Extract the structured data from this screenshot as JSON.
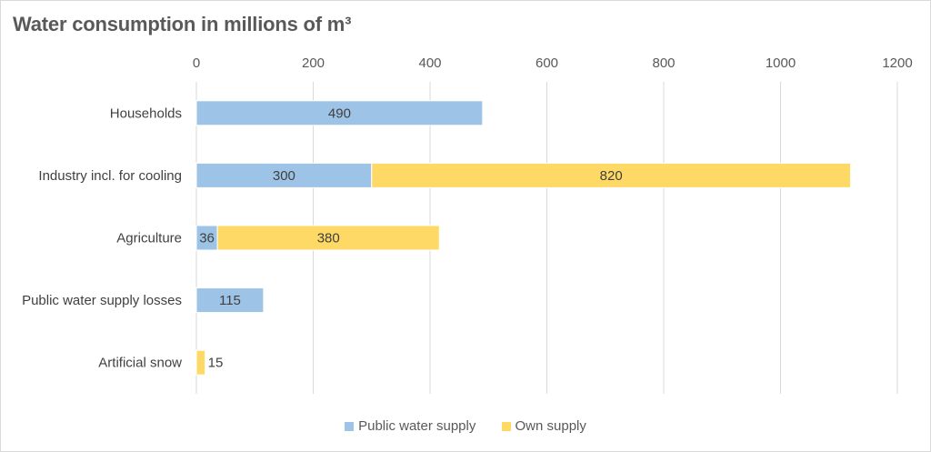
{
  "chart_data": {
    "type": "bar",
    "orientation": "horizontal",
    "stacked": true,
    "title": "Water consumption in millions of m³",
    "xlabel": "",
    "ylabel": "",
    "xlim": [
      0,
      1200
    ],
    "xticks": [
      0,
      200,
      400,
      600,
      800,
      1000,
      1200
    ],
    "xtick_labels": [
      "0",
      "200",
      "400",
      "600",
      "800",
      "1000",
      "1200"
    ],
    "x_axis_position": "top",
    "grid": true,
    "legend_position": "bottom",
    "categories": [
      "Households",
      "Industry incl. for cooling",
      "Agriculture",
      "Public water supply losses",
      "Artificial snow"
    ],
    "series": [
      {
        "name": "Public water supply",
        "color": "#9DC3E6",
        "values": [
          490,
          300,
          36,
          115,
          0
        ],
        "labels": [
          "490",
          "300",
          "36",
          "115",
          ""
        ]
      },
      {
        "name": "Own supply",
        "color": "#FFD966",
        "values": [
          0,
          820,
          380,
          0,
          15
        ],
        "labels": [
          "",
          "820",
          "380",
          "",
          "15"
        ]
      }
    ]
  }
}
